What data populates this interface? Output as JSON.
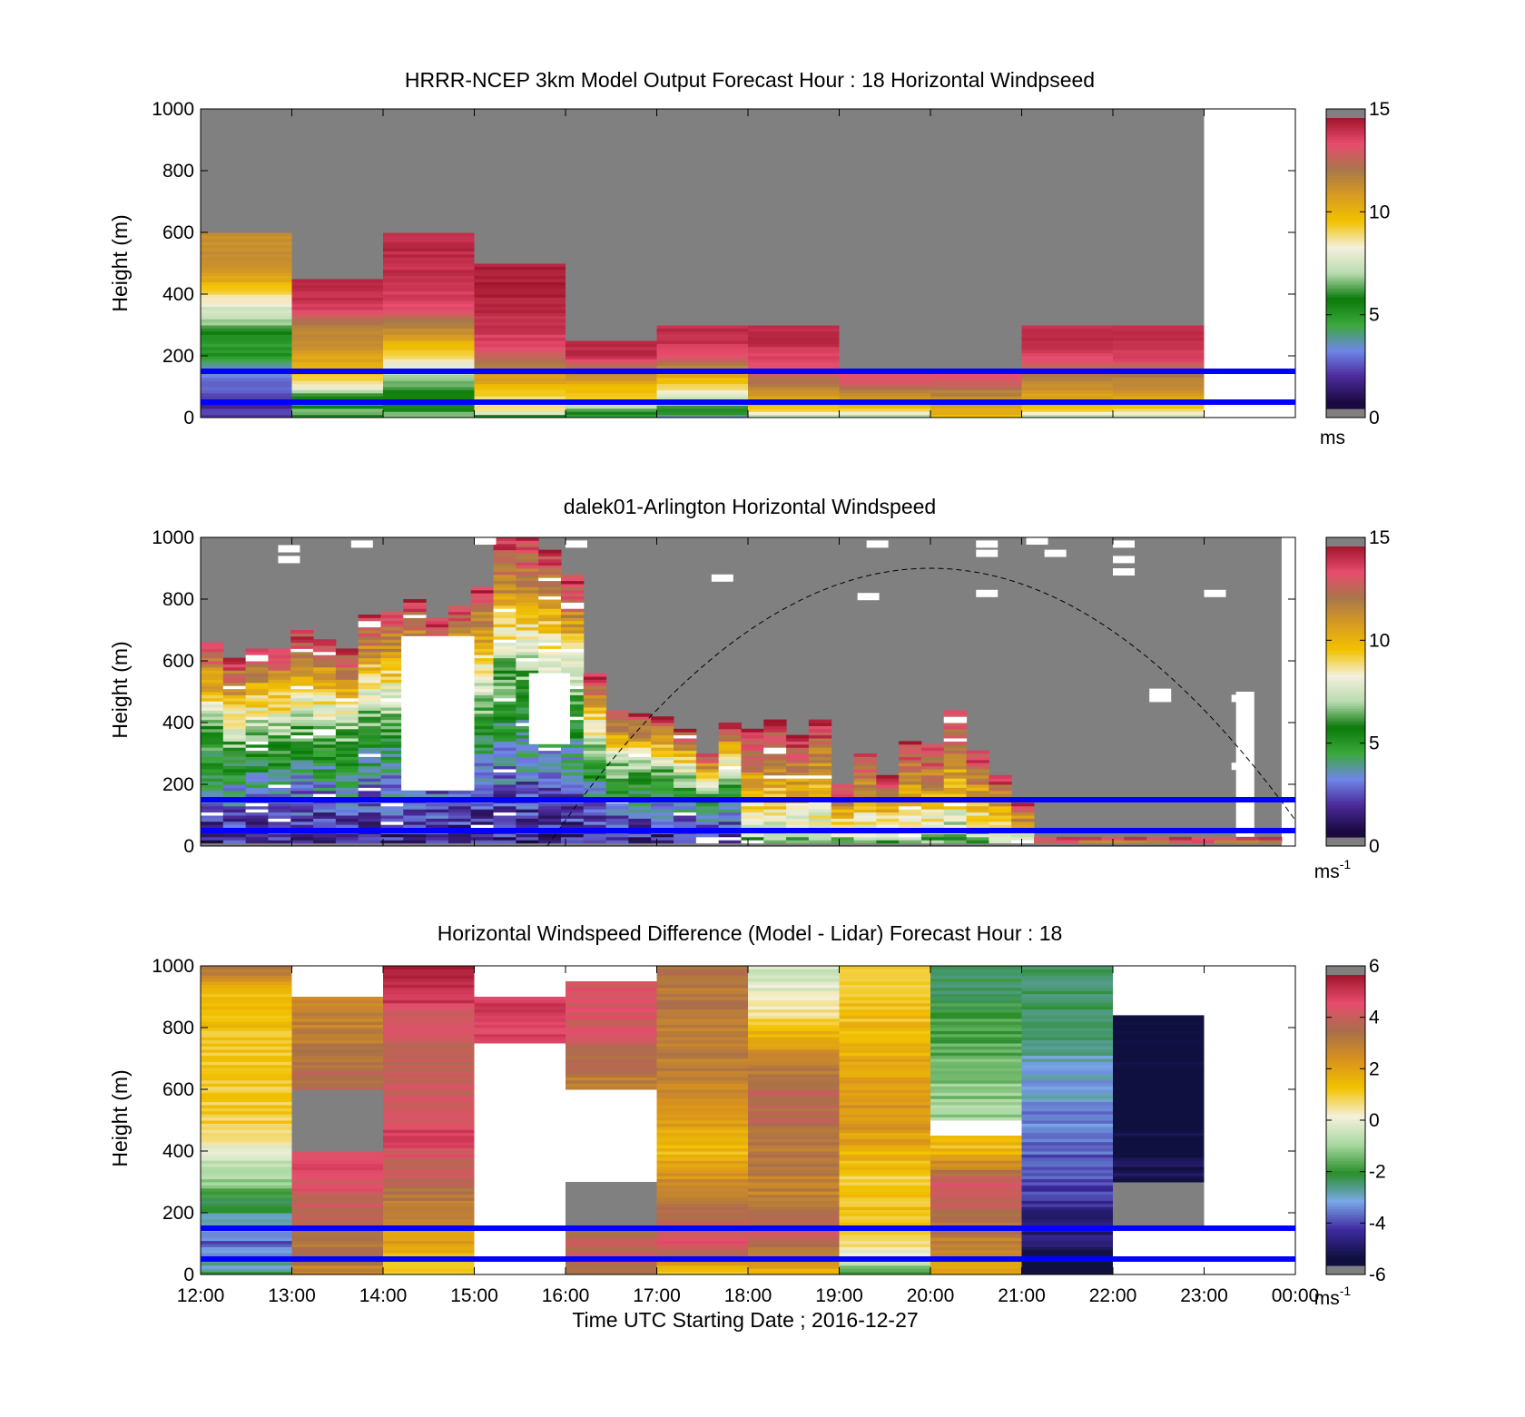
{
  "figure": {
    "xlabel": "Time UTC  Starting Date ; 2016-12-27",
    "x_ticks": [
      "12:00",
      "13:00",
      "14:00",
      "15:00",
      "16:00",
      "17:00",
      "18:00",
      "19:00",
      "20:00",
      "21:00",
      "22:00",
      "23:00",
      "00:00"
    ]
  },
  "colors": {
    "no_data_gray": "#808080",
    "boundary_lines": "#0000ff",
    "speed_colormap": [
      "#808080",
      "#1a0a40",
      "#4b2a9a",
      "#6f86e8",
      "#3ca83c",
      "#0a7a0a",
      "#b9dcb0",
      "#f4f0dc",
      "#f2c200",
      "#d89b22",
      "#a8774a",
      "#e84c6e",
      "#a0152c"
    ],
    "diff_colormap": [
      "#808080",
      "#101040",
      "#3f2aa0",
      "#7aa8e8",
      "#2a8f2a",
      "#a8d8a0",
      "#f4f0dc",
      "#f2c200",
      "#d8921e",
      "#a8704a",
      "#e84c6e",
      "#a0152c"
    ]
  },
  "chart_data": [
    {
      "type": "heatmap",
      "title": "HRRR-NCEP 3km Model Output   Forecast Hour : 18 Horizontal Windpseed",
      "ylabel": "Height (m)",
      "y_ticks": [
        "0",
        "200",
        "400",
        "600",
        "800",
        "1000"
      ],
      "ylim": [
        0,
        1000
      ],
      "xlim_hours": [
        12,
        24
      ],
      "colorbar": {
        "min": 0,
        "max": 15,
        "ticks": [
          "0",
          "5",
          "10",
          "15"
        ],
        "unit": "ms",
        "unit_sup": ""
      },
      "blue_lines_height_m": [
        50,
        150
      ],
      "columns": [
        {
          "start": 12,
          "top": 600,
          "profile": [
            [
              0,
              2
            ],
            [
              50,
              1.5
            ],
            [
              100,
              2.5
            ],
            [
              150,
              3
            ],
            [
              200,
              5
            ],
            [
              250,
              4.5
            ],
            [
              300,
              6.5
            ],
            [
              350,
              7.5
            ],
            [
              400,
              9
            ],
            [
              450,
              10.5
            ],
            [
              500,
              11.5
            ],
            [
              600,
              null
            ]
          ]
        },
        {
          "start": 13,
          "top": 450,
          "profile": [
            [
              0,
              5
            ],
            [
              20,
              7
            ],
            [
              50,
              4
            ],
            [
              100,
              8.5
            ],
            [
              150,
              10
            ],
            [
              250,
              11.5
            ],
            [
              300,
              12
            ],
            [
              350,
              14
            ],
            [
              400,
              14.5
            ],
            [
              450,
              null
            ]
          ]
        },
        {
          "start": 14,
          "top": 600,
          "profile": [
            [
              0,
              7
            ],
            [
              50,
              5
            ],
            [
              100,
              6
            ],
            [
              150,
              7.5
            ],
            [
              200,
              9
            ],
            [
              250,
              10.5
            ],
            [
              300,
              12
            ],
            [
              350,
              13.5
            ],
            [
              400,
              14
            ],
            [
              500,
              14.5
            ],
            [
              600,
              null
            ]
          ]
        },
        {
          "start": 15,
          "top": 500,
          "profile": [
            [
              0,
              5
            ],
            [
              20,
              9
            ],
            [
              50,
              8.5
            ],
            [
              100,
              10
            ],
            [
              150,
              11.5
            ],
            [
              200,
              13
            ],
            [
              250,
              14
            ],
            [
              350,
              14.5
            ],
            [
              450,
              14.8
            ],
            [
              500,
              null
            ]
          ]
        },
        {
          "start": 16,
          "top": 250,
          "profile": [
            [
              0,
              4
            ],
            [
              20,
              6
            ],
            [
              60,
              9
            ],
            [
              100,
              10
            ],
            [
              150,
              12
            ],
            [
              200,
              14.5
            ],
            [
              250,
              null
            ]
          ]
        },
        {
          "start": 17,
          "top": 300,
          "profile": [
            [
              0,
              3
            ],
            [
              20,
              5.5
            ],
            [
              60,
              7.5
            ],
            [
              100,
              9
            ],
            [
              150,
              11
            ],
            [
              200,
              13.5
            ],
            [
              250,
              14.5
            ],
            [
              300,
              null
            ]
          ]
        },
        {
          "start": 18,
          "top": 300,
          "profile": [
            [
              0,
              6.5
            ],
            [
              20,
              9
            ],
            [
              60,
              10.5
            ],
            [
              100,
              12
            ],
            [
              150,
              13.5
            ],
            [
              200,
              14
            ],
            [
              250,
              14.5
            ],
            [
              300,
              null
            ]
          ]
        },
        {
          "start": 19,
          "top": 150,
          "profile": [
            [
              0,
              6.5
            ],
            [
              20,
              9
            ],
            [
              60,
              11
            ],
            [
              100,
              12.5
            ],
            [
              120,
              13.5
            ],
            [
              150,
              null
            ]
          ]
        },
        {
          "start": 20,
          "top": 150,
          "profile": [
            [
              0,
              9.5
            ],
            [
              20,
              10.5
            ],
            [
              60,
              11.5
            ],
            [
              100,
              12.5
            ],
            [
              120,
              13.5
            ],
            [
              150,
              null
            ]
          ]
        },
        {
          "start": 21,
          "top": 300,
          "profile": [
            [
              0,
              6.5
            ],
            [
              20,
              9
            ],
            [
              60,
              10.5
            ],
            [
              100,
              11.5
            ],
            [
              150,
              12.5
            ],
            [
              200,
              14
            ],
            [
              250,
              14.5
            ],
            [
              300,
              null
            ]
          ]
        },
        {
          "start": 22,
          "top": 300,
          "profile": [
            [
              0,
              6.5
            ],
            [
              20,
              9
            ],
            [
              60,
              10.5
            ],
            [
              100,
              11.5
            ],
            [
              150,
              12.5
            ],
            [
              200,
              14
            ],
            [
              250,
              14.5
            ],
            [
              300,
              null
            ]
          ]
        }
      ]
    },
    {
      "type": "heatmap",
      "title": "dalek01-Arlington  Horizontal Windspeed",
      "ylabel": "Height (m)",
      "y_ticks": [
        "0",
        "200",
        "400",
        "600",
        "800",
        "1000"
      ],
      "ylim": [
        0,
        1000
      ],
      "xlim_hours": [
        12,
        24
      ],
      "colorbar": {
        "min": 0,
        "max": 15,
        "ticks": [
          "0",
          "5",
          "10",
          "15"
        ],
        "unit": "ms",
        "unit_sup": "-1"
      },
      "blue_lines_height_m": [
        50,
        150
      ],
      "solar_curve": {
        "start_hour": 15.8,
        "end_hour": 24,
        "peak_hour": 20,
        "peak_height_m": 900
      },
      "profile_tops_m": [
        660,
        610,
        640,
        640,
        700,
        670,
        640,
        750,
        760,
        800,
        740,
        780,
        840,
        1000,
        1000,
        960,
        880,
        560,
        440,
        430,
        420,
        380,
        300,
        400,
        380,
        410,
        360,
        410,
        200,
        300,
        230,
        340,
        330,
        440,
        310,
        230,
        140,
        30,
        30,
        30,
        30,
        30,
        30,
        30,
        30,
        30,
        30,
        30
      ]
    },
    {
      "type": "heatmap",
      "title": "Horizontal Windspeed Difference (Model - Lidar) Forecast Hour : 18",
      "ylabel": "Height (m)",
      "y_ticks": [
        "0",
        "200",
        "400",
        "600",
        "800",
        "1000"
      ],
      "ylim": [
        0,
        1000
      ],
      "xlim_hours": [
        12,
        24
      ],
      "colorbar": {
        "min": -6,
        "max": 6,
        "ticks": [
          "-6",
          "-4",
          "-2",
          "0",
          "2",
          "4",
          "6"
        ],
        "unit": "ms",
        "unit_sup": "-1"
      },
      "blue_lines_height_m": [
        50,
        150
      ],
      "columns": [
        {
          "start": 12,
          "top": 1000,
          "profile": [
            [
              0,
              -2.5
            ],
            [
              100,
              -4
            ],
            [
              250,
              -2
            ],
            [
              400,
              0
            ],
            [
              500,
              1
            ],
            [
              900,
              1.5
            ],
            [
              1000,
              3.5
            ]
          ]
        },
        {
          "start": 13,
          "top": 900,
          "profile": [
            [
              0,
              3
            ],
            [
              100,
              3.5
            ],
            [
              200,
              4
            ],
            [
              350,
              5
            ],
            [
              400,
              "nan"
            ],
            [
              600,
              4
            ],
            [
              800,
              3
            ],
            [
              900,
              "blank"
            ]
          ]
        },
        {
          "start": 14,
          "top": 1000,
          "profile": [
            [
              0,
              0.5
            ],
            [
              50,
              1.5
            ],
            [
              150,
              2.5
            ],
            [
              250,
              3.5
            ],
            [
              450,
              5
            ],
            [
              650,
              4
            ],
            [
              850,
              4.5
            ],
            [
              900,
              5.5
            ],
            [
              1000,
              "blank"
            ]
          ]
        },
        {
          "start": 15,
          "top": 1000,
          "profile": [
            [
              0,
              "blank"
            ],
            [
              750,
              5
            ],
            [
              900,
              "blank"
            ],
            [
              1000,
              "blank"
            ]
          ]
        },
        {
          "start": 16,
          "top": 1000,
          "profile": [
            [
              0,
              4
            ],
            [
              150,
              "nan"
            ],
            [
              300,
              "blank"
            ],
            [
              600,
              3
            ],
            [
              800,
              4.5
            ],
            [
              950,
              "blank"
            ]
          ]
        },
        {
          "start": 17,
          "top": 1000,
          "profile": [
            [
              0,
              1
            ],
            [
              100,
              5
            ],
            [
              400,
              1.5
            ],
            [
              600,
              3
            ],
            [
              1000,
              3.5
            ]
          ]
        },
        {
          "start": 18,
          "top": 1000,
          "profile": [
            [
              0,
              1.5
            ],
            [
              150,
              4.5
            ],
            [
              250,
              3
            ],
            [
              600,
              4
            ],
            [
              750,
              2
            ],
            [
              900,
              0
            ],
            [
              1000,
              -0.5
            ]
          ]
        },
        {
          "start": 19,
          "top": 1000,
          "profile": [
            [
              0,
              -2
            ],
            [
              50,
              -0.5
            ],
            [
              150,
              1.5
            ],
            [
              300,
              1
            ],
            [
              500,
              2.5
            ],
            [
              800,
              1.5
            ],
            [
              1000,
              1
            ]
          ]
        },
        {
          "start": 20,
          "top": 1000,
          "profile": [
            [
              0,
              2
            ],
            [
              150,
              3.5
            ],
            [
              300,
              4.5
            ],
            [
              400,
              1.5
            ],
            [
              450,
              "blank"
            ],
            [
              500,
              -1
            ],
            [
              800,
              -2
            ],
            [
              1000,
              -2.5
            ]
          ]
        },
        {
          "start": 21,
          "top": 1000,
          "profile": [
            [
              0,
              -6
            ],
            [
              150,
              -5
            ],
            [
              250,
              -4.5
            ],
            [
              400,
              -4
            ],
            [
              700,
              -3
            ],
            [
              900,
              -2.5
            ],
            [
              1000,
              "blank"
            ]
          ]
        },
        {
          "start": 22,
          "top": 840,
          "profile": [
            [
              0,
              "blank"
            ],
            [
              150,
              "nan"
            ],
            [
              300,
              -5.5
            ],
            [
              600,
              -6
            ],
            [
              840,
              "blank"
            ]
          ]
        }
      ]
    }
  ]
}
